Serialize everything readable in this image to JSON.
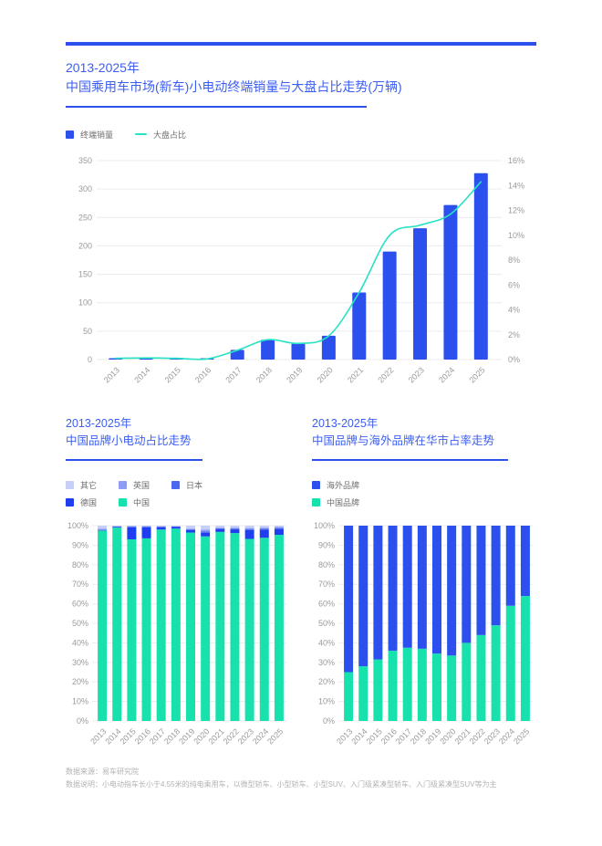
{
  "footer": {
    "source": "数据来源：易车研究院",
    "note": "数据说明：小电动指车长小于4.55米的纯电乘用车，以微型轿车、小型轿车、小型SUV、入门级紧凑型轿车、入门级紧凑型SUV等为主"
  },
  "colors": {
    "accent_blue": "#2b50ed",
    "title_blue": "#3c5ef0",
    "teal_line": "#27e3c3",
    "teal_bar": "#17e2ad",
    "grid": "#ececec",
    "axis_text": "#9a9a9a",
    "legend_text": "#6f6f6f"
  },
  "chart_data": [
    {
      "id": "sales-vs-market-share",
      "type": "bar+line",
      "title_line1": "2013-2025年",
      "title_line2": "中国乘用车市场(新车)小电动终端销量与大盘占比走势(万辆)",
      "categories": [
        "2013",
        "2014",
        "2015",
        "2016",
        "2017",
        "2018",
        "2019",
        "2020",
        "2021",
        "2022",
        "2023",
        "2024",
        "2025"
      ],
      "series": [
        {
          "name": "终端销量",
          "type": "bar",
          "axis": "left",
          "color": "#2b50ed",
          "values": [
            2,
            3,
            2,
            1,
            17,
            35,
            28,
            42,
            118,
            190,
            231,
            272,
            328
          ]
        },
        {
          "name": "大盘占比",
          "type": "line",
          "axis": "right",
          "color": "#27e3c3",
          "values": [
            0.1,
            0.13,
            0.1,
            0.05,
            0.75,
            1.6,
            1.3,
            1.9,
            5.4,
            10.0,
            10.8,
            11.7,
            14.3
          ]
        }
      ],
      "left_axis": {
        "min": 0,
        "max": 350,
        "step": 50,
        "labels": [
          "350",
          "300",
          "250",
          "200",
          "150",
          "100",
          "50",
          "0"
        ]
      },
      "right_axis": {
        "min": 0,
        "max": 16,
        "step": 2,
        "labels": [
          "16%",
          "14%",
          "12%",
          "10%",
          "8%",
          "6%",
          "4%",
          "2%",
          "0%"
        ]
      },
      "grid": true,
      "legend_rows": [
        [
          {
            "label": "终端销量",
            "color": "#2b50ed",
            "swatch": "square"
          },
          {
            "label": "大盘占比",
            "color": "#27e3c3",
            "swatch": "line"
          }
        ]
      ]
    },
    {
      "id": "china-brand-share-of-small-ev",
      "type": "stacked-bar",
      "title_line1": "2013-2025年",
      "title_line2": "中国品牌小电动占比走势",
      "categories": [
        "2013",
        "2014",
        "2015",
        "2016",
        "2017",
        "2018",
        "2019",
        "2020",
        "2021",
        "2022",
        "2023",
        "2024",
        "2025"
      ],
      "y_axis": {
        "min": 0,
        "max": 100,
        "step": 10,
        "labels": [
          "100%",
          "90%",
          "80%",
          "70%",
          "60%",
          "50%",
          "40%",
          "30%",
          "20%",
          "10%",
          "0%"
        ]
      },
      "grid": true,
      "series_bottom_to_top": [
        {
          "name": "中国",
          "color": "#17e2ad",
          "values": [
            97.5,
            99.0,
            93.0,
            93.5,
            98.0,
            98.5,
            96.5,
            94.5,
            96.8,
            96.2,
            93.2,
            93.8,
            95.3
          ]
        },
        {
          "name": "德国",
          "color": "#1f3ef0",
          "values": [
            0.3,
            0.4,
            6.2,
            5.7,
            1.2,
            0.8,
            1.2,
            1.8,
            1.4,
            1.9,
            4.6,
            4.2,
            3.0
          ]
        },
        {
          "name": "日本",
          "color": "#4c66ee",
          "values": [
            0.2,
            0.2,
            0.3,
            0.3,
            0.3,
            0.2,
            0.4,
            0.8,
            0.4,
            0.4,
            0.5,
            0.5,
            0.5
          ]
        },
        {
          "name": "英国",
          "color": "#8c9df2",
          "values": [
            0.5,
            0.2,
            0.3,
            0.3,
            0.2,
            0.2,
            0.4,
            0.9,
            0.4,
            0.5,
            0.5,
            0.5,
            0.5
          ]
        },
        {
          "name": "其它",
          "color": "#c6cff8",
          "values": [
            1.5,
            0.2,
            0.2,
            0.2,
            0.3,
            0.3,
            1.5,
            2.0,
            1.0,
            1.0,
            1.2,
            1.0,
            0.7
          ]
        }
      ],
      "legend_rows": [
        [
          {
            "label": "其它",
            "color": "#c6cff8",
            "swatch": "square"
          },
          {
            "label": "英国",
            "color": "#8c9df2",
            "swatch": "square"
          },
          {
            "label": "日本",
            "color": "#4c66ee",
            "swatch": "square"
          }
        ],
        [
          {
            "label": "德国",
            "color": "#1f3ef0",
            "swatch": "square"
          },
          {
            "label": "中国",
            "color": "#17e2ad",
            "swatch": "square"
          }
        ]
      ]
    },
    {
      "id": "china-vs-foreign-brand-share",
      "type": "stacked-bar",
      "title_line1": "2013-2025年",
      "title_line2": "中国品牌与海外品牌在华市占率走势",
      "categories": [
        "2013",
        "2014",
        "2015",
        "2016",
        "2017",
        "2018",
        "2019",
        "2020",
        "2021",
        "2022",
        "2023",
        "2024",
        "2025"
      ],
      "y_axis": {
        "min": 0,
        "max": 100,
        "step": 10,
        "labels": [
          "100%",
          "90%",
          "80%",
          "70%",
          "60%",
          "50%",
          "40%",
          "30%",
          "20%",
          "10%",
          "0%"
        ]
      },
      "grid": true,
      "series_bottom_to_top": [
        {
          "name": "中国品牌",
          "color": "#17e2ad",
          "values": [
            25,
            28,
            31.5,
            36,
            37.5,
            37,
            34.5,
            33.5,
            40,
            44,
            49,
            59,
            64
          ]
        },
        {
          "name": "海外品牌",
          "color": "#2b50ed",
          "values": [
            75,
            72,
            68.5,
            64,
            62.5,
            63,
            65.5,
            66.5,
            60,
            56,
            51,
            41,
            36
          ]
        }
      ],
      "legend_rows": [
        [
          {
            "label": "海外品牌",
            "color": "#2b50ed",
            "swatch": "square"
          }
        ],
        [
          {
            "label": "中国品牌",
            "color": "#17e2ad",
            "swatch": "square"
          }
        ]
      ]
    }
  ]
}
